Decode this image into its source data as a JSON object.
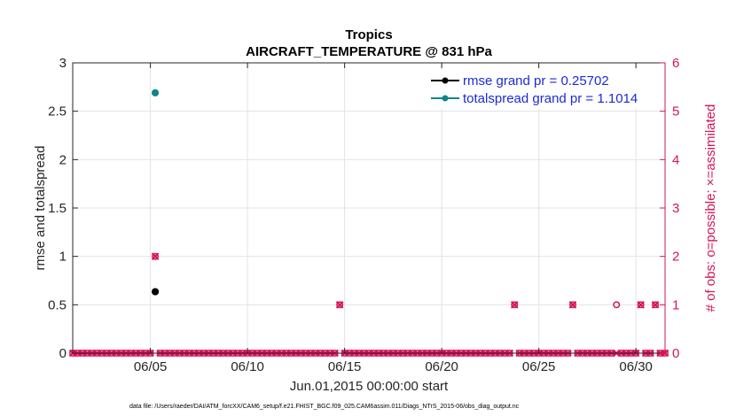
{
  "chart_data": {
    "type": "scatter",
    "title": "Tropics",
    "subtitle": "AIRCRAFT_TEMPERATURE @ 831 hPa",
    "xlabel": "Jun.01,2015 00:00:00 start",
    "ylabel": "rmse and totalspread",
    "y2label": "# of obs: o=possible; ×=assimilated",
    "xlim": [
      1,
      31.5
    ],
    "ylim": [
      0,
      3
    ],
    "y2lim": [
      0,
      6
    ],
    "x_ticks": [
      5,
      10,
      15,
      20,
      25,
      30
    ],
    "x_tick_labels": [
      "06/05",
      "06/10",
      "06/15",
      "06/20",
      "06/25",
      "06/30"
    ],
    "y_ticks": [
      0,
      0.5,
      1,
      1.5,
      2,
      2.5,
      3
    ],
    "y_tick_labels": [
      "0",
      "0.5",
      "1",
      "1.5",
      "2",
      "2.5",
      "3"
    ],
    "y2_ticks": [
      0,
      1,
      2,
      3,
      4,
      5,
      6
    ],
    "y2_tick_labels": [
      "0",
      "1",
      "2",
      "3",
      "4",
      "5",
      "6"
    ],
    "grid": true,
    "legend_position": "top-right",
    "series": [
      {
        "name": "rmse grand pr = 0.25702",
        "color": "#000000",
        "axis": "left",
        "marker": "filled-circle",
        "points": [
          [
            5.25,
            0.635
          ]
        ]
      },
      {
        "name": "totalspread grand pr = 1.1014",
        "color": "#0f8585",
        "axis": "left",
        "marker": "filled-circle",
        "points": [
          [
            5.25,
            2.69
          ]
        ]
      }
    ],
    "obs_possible": {
      "color": "#d6135a",
      "axis": "right",
      "marker": "open-circle",
      "nonzero_points": [
        [
          5.25,
          2
        ],
        [
          14.75,
          1
        ],
        [
          23.75,
          1
        ],
        [
          26.75,
          1
        ],
        [
          29.0,
          1
        ],
        [
          30.25,
          1
        ],
        [
          31.0,
          1
        ]
      ],
      "zero_x_start": 1.0,
      "zero_x_end": 31.5,
      "zero_x_step": 0.25
    },
    "obs_assimilated": {
      "color": "#d6135a",
      "axis": "right",
      "marker": "cross",
      "nonzero_points": [
        [
          5.25,
          2
        ],
        [
          14.75,
          1
        ],
        [
          23.75,
          1
        ],
        [
          26.75,
          1
        ],
        [
          30.25,
          1
        ],
        [
          31.0,
          1
        ]
      ],
      "zero_x_start": 1.0,
      "zero_x_end": 31.5,
      "zero_x_step": 0.25
    },
    "footnote": "data file: /Users/raeder/DAI/ATM_forcXX/CAM6_setup/f.e21.FHIST_BGC.f09_025.CAM6assim.011/Diags_NTrS_2015-06/obs_diag_output.nc"
  }
}
